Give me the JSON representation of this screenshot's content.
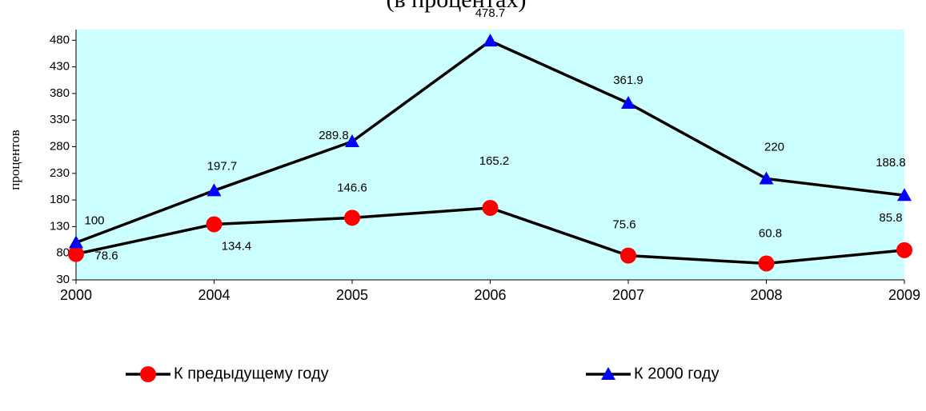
{
  "chart_data": {
    "type": "line",
    "title": "(в процентах)",
    "ylabel": "процентов",
    "categories": [
      "2000",
      "2004",
      "2005",
      "2006",
      "2007",
      "2008",
      "2009"
    ],
    "series": [
      {
        "name": "К предыдущему году",
        "color": "#ff0000",
        "marker": "circle",
        "values": [
          78.6,
          134.4,
          146.6,
          165.2,
          75.6,
          60.8,
          85.8
        ]
      },
      {
        "name": "К 2000 году",
        "color": "#0000ff",
        "marker": "triangle",
        "values": [
          100,
          197.7,
          289.8,
          478.7,
          361.9,
          220,
          188.8
        ]
      }
    ],
    "line_color": "#000000",
    "background": "#ccffff",
    "ylim": [
      30,
      500
    ],
    "yticks": [
      30,
      80,
      130,
      180,
      230,
      280,
      330,
      380,
      430,
      480
    ],
    "legend": "bottom"
  }
}
